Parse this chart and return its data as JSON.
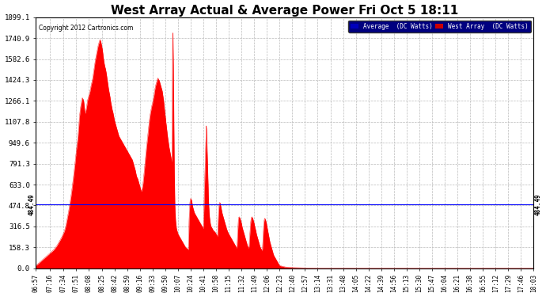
{
  "title": "West Array Actual & Average Power Fri Oct 5 18:11",
  "copyright": "Copyright 2012 Cartronics.com",
  "legend_labels": [
    "Average  (DC Watts)",
    "West Array  (DC Watts)"
  ],
  "legend_colors": [
    "#0000bb",
    "#cc0000"
  ],
  "avg_line_value": 484.49,
  "avg_label": "484.49",
  "ylim": [
    0,
    1899.1
  ],
  "yticks": [
    0.0,
    158.3,
    316.5,
    474.8,
    633.0,
    791.3,
    949.6,
    1107.8,
    1266.1,
    1424.3,
    1582.6,
    1740.9,
    1899.1
  ],
  "ytick_labels": [
    "0.0",
    "158.3",
    "316.5",
    "474.8",
    "633.0",
    "791.3",
    "949.6",
    "1107.8",
    "1266.1",
    "1424.3",
    "1582.6",
    "1740.9",
    "1899.1"
  ],
  "fill_color": "#ff0000",
  "avg_line_color": "#0000ff",
  "bg_color": "#ffffff",
  "grid_color": "#aaaaaa",
  "title_fontsize": 11,
  "xtick_labels": [
    "06:57",
    "07:16",
    "07:34",
    "07:51",
    "08:08",
    "08:25",
    "08:42",
    "08:59",
    "09:16",
    "09:33",
    "09:50",
    "10:07",
    "10:24",
    "10:41",
    "10:58",
    "11:15",
    "11:32",
    "11:49",
    "12:06",
    "12:23",
    "12:40",
    "12:57",
    "13:14",
    "13:31",
    "13:48",
    "14:05",
    "14:22",
    "14:39",
    "14:56",
    "15:13",
    "15:30",
    "15:47",
    "16:04",
    "16:21",
    "16:38",
    "16:55",
    "17:12",
    "17:29",
    "17:46",
    "18:03"
  ],
  "ctrl_points": [
    [
      417,
      20
    ],
    [
      419,
      30
    ],
    [
      421,
      40
    ],
    [
      423,
      50
    ],
    [
      425,
      60
    ],
    [
      427,
      70
    ],
    [
      429,
      80
    ],
    [
      431,
      90
    ],
    [
      433,
      100
    ],
    [
      435,
      110
    ],
    [
      437,
      120
    ],
    [
      439,
      130
    ],
    [
      441,
      140
    ],
    [
      443,
      155
    ],
    [
      445,
      170
    ],
    [
      447,
      190
    ],
    [
      449,
      210
    ],
    [
      451,
      230
    ],
    [
      453,
      255
    ],
    [
      455,
      280
    ],
    [
      457,
      320
    ],
    [
      459,
      380
    ],
    [
      461,
      440
    ],
    [
      463,
      510
    ],
    [
      465,
      590
    ],
    [
      467,
      680
    ],
    [
      469,
      780
    ],
    [
      471,
      890
    ],
    [
      473,
      980
    ],
    [
      474,
      1050
    ],
    [
      475,
      1130
    ],
    [
      476,
      1190
    ],
    [
      477,
      1230
    ],
    [
      478,
      1260
    ],
    [
      479,
      1290
    ],
    [
      480,
      1280
    ],
    [
      481,
      1260
    ],
    [
      482,
      1200
    ],
    [
      483,
      1170
    ],
    [
      484,
      1200
    ],
    [
      485,
      1230
    ],
    [
      486,
      1270
    ],
    [
      487,
      1290
    ],
    [
      488,
      1310
    ],
    [
      489,
      1330
    ],
    [
      490,
      1360
    ],
    [
      491,
      1390
    ],
    [
      492,
      1410
    ],
    [
      493,
      1440
    ],
    [
      494,
      1480
    ],
    [
      495,
      1520
    ],
    [
      496,
      1560
    ],
    [
      497,
      1590
    ],
    [
      498,
      1620
    ],
    [
      499,
      1650
    ],
    [
      500,
      1680
    ],
    [
      501,
      1700
    ],
    [
      502,
      1720
    ],
    [
      503,
      1730
    ],
    [
      504,
      1710
    ],
    [
      505,
      1680
    ],
    [
      506,
      1650
    ],
    [
      507,
      1600
    ],
    [
      508,
      1560
    ],
    [
      509,
      1530
    ],
    [
      510,
      1510
    ],
    [
      511,
      1480
    ],
    [
      512,
      1440
    ],
    [
      513,
      1400
    ],
    [
      514,
      1360
    ],
    [
      515,
      1330
    ],
    [
      516,
      1300
    ],
    [
      517,
      1260
    ],
    [
      518,
      1230
    ],
    [
      519,
      1200
    ],
    [
      520,
      1180
    ],
    [
      521,
      1150
    ],
    [
      522,
      1120
    ],
    [
      523,
      1100
    ],
    [
      524,
      1080
    ],
    [
      525,
      1060
    ],
    [
      526,
      1040
    ],
    [
      527,
      1020
    ],
    [
      528,
      1000
    ],
    [
      529,
      990
    ],
    [
      530,
      980
    ],
    [
      531,
      970
    ],
    [
      532,
      960
    ],
    [
      533,
      950
    ],
    [
      534,
      940
    ],
    [
      535,
      930
    ],
    [
      536,
      920
    ],
    [
      537,
      910
    ],
    [
      538,
      900
    ],
    [
      539,
      890
    ],
    [
      540,
      880
    ],
    [
      541,
      870
    ],
    [
      542,
      860
    ],
    [
      543,
      850
    ],
    [
      544,
      840
    ],
    [
      545,
      830
    ],
    [
      546,
      820
    ],
    [
      547,
      800
    ],
    [
      548,
      780
    ],
    [
      549,
      760
    ],
    [
      550,
      740
    ],
    [
      551,
      710
    ],
    [
      552,
      690
    ],
    [
      553,
      680
    ],
    [
      554,
      660
    ],
    [
      555,
      640
    ],
    [
      556,
      620
    ],
    [
      557,
      600
    ],
    [
      558,
      580
    ],
    [
      559,
      600
    ],
    [
      560,
      630
    ],
    [
      561,
      680
    ],
    [
      562,
      740
    ],
    [
      563,
      800
    ],
    [
      564,
      860
    ],
    [
      565,
      920
    ],
    [
      566,
      970
    ],
    [
      567,
      1020
    ],
    [
      568,
      1080
    ],
    [
      569,
      1130
    ],
    [
      570,
      1170
    ],
    [
      571,
      1200
    ],
    [
      572,
      1230
    ],
    [
      573,
      1250
    ],
    [
      574,
      1280
    ],
    [
      575,
      1310
    ],
    [
      576,
      1350
    ],
    [
      577,
      1380
    ],
    [
      578,
      1400
    ],
    [
      579,
      1420
    ],
    [
      580,
      1440
    ],
    [
      581,
      1430
    ],
    [
      582,
      1420
    ],
    [
      583,
      1400
    ],
    [
      584,
      1380
    ],
    [
      585,
      1360
    ],
    [
      586,
      1340
    ],
    [
      587,
      1300
    ],
    [
      588,
      1260
    ],
    [
      589,
      1200
    ],
    [
      590,
      1150
    ],
    [
      591,
      1100
    ],
    [
      592,
      1050
    ],
    [
      593,
      1000
    ],
    [
      594,
      960
    ],
    [
      595,
      920
    ],
    [
      596,
      890
    ],
    [
      597,
      860
    ],
    [
      598,
      830
    ],
    [
      599,
      800
    ],
    [
      600,
      1870
    ],
    [
      601,
      1500
    ],
    [
      602,
      800
    ],
    [
      603,
      450
    ],
    [
      604,
      350
    ],
    [
      605,
      300
    ],
    [
      606,
      280
    ],
    [
      607,
      260
    ],
    [
      608,
      250
    ],
    [
      609,
      240
    ],
    [
      610,
      230
    ],
    [
      611,
      220
    ],
    [
      612,
      210
    ],
    [
      613,
      200
    ],
    [
      614,
      190
    ],
    [
      615,
      180
    ],
    [
      616,
      170
    ],
    [
      617,
      160
    ],
    [
      618,
      155
    ],
    [
      619,
      150
    ],
    [
      620,
      145
    ],
    [
      621,
      140
    ],
    [
      622,
      390
    ],
    [
      623,
      500
    ],
    [
      624,
      530
    ],
    [
      625,
      520
    ],
    [
      626,
      490
    ],
    [
      627,
      460
    ],
    [
      628,
      440
    ],
    [
      629,
      420
    ],
    [
      630,
      410
    ],
    [
      631,
      400
    ],
    [
      632,
      390
    ],
    [
      633,
      380
    ],
    [
      634,
      370
    ],
    [
      635,
      360
    ],
    [
      636,
      350
    ],
    [
      637,
      340
    ],
    [
      638,
      330
    ],
    [
      639,
      320
    ],
    [
      640,
      310
    ],
    [
      641,
      300
    ],
    [
      642,
      500
    ],
    [
      643,
      700
    ],
    [
      644,
      900
    ],
    [
      645,
      1100
    ],
    [
      646,
      900
    ],
    [
      647,
      700
    ],
    [
      648,
      500
    ],
    [
      649,
      400
    ],
    [
      650,
      350
    ],
    [
      651,
      320
    ],
    [
      652,
      310
    ],
    [
      653,
      300
    ],
    [
      654,
      290
    ],
    [
      655,
      280
    ],
    [
      656,
      280
    ],
    [
      657,
      270
    ],
    [
      658,
      260
    ],
    [
      659,
      250
    ],
    [
      660,
      240
    ],
    [
      661,
      380
    ],
    [
      662,
      480
    ],
    [
      663,
      500
    ],
    [
      664,
      480
    ],
    [
      665,
      450
    ],
    [
      666,
      420
    ],
    [
      667,
      400
    ],
    [
      668,
      380
    ],
    [
      669,
      360
    ],
    [
      670,
      340
    ],
    [
      671,
      320
    ],
    [
      672,
      300
    ],
    [
      673,
      285
    ],
    [
      674,
      270
    ],
    [
      675,
      260
    ],
    [
      676,
      250
    ],
    [
      677,
      240
    ],
    [
      678,
      230
    ],
    [
      679,
      220
    ],
    [
      680,
      210
    ],
    [
      681,
      200
    ],
    [
      682,
      190
    ],
    [
      683,
      180
    ],
    [
      684,
      170
    ],
    [
      685,
      160
    ],
    [
      686,
      150
    ],
    [
      687,
      280
    ],
    [
      688,
      380
    ],
    [
      689,
      390
    ],
    [
      690,
      380
    ],
    [
      691,
      360
    ],
    [
      692,
      340
    ],
    [
      693,
      310
    ],
    [
      694,
      290
    ],
    [
      695,
      270
    ],
    [
      696,
      250
    ],
    [
      697,
      230
    ],
    [
      698,
      210
    ],
    [
      699,
      190
    ],
    [
      700,
      170
    ],
    [
      701,
      160
    ],
    [
      702,
      150
    ],
    [
      703,
      240
    ],
    [
      704,
      330
    ],
    [
      705,
      380
    ],
    [
      706,
      390
    ],
    [
      707,
      380
    ],
    [
      708,
      360
    ],
    [
      709,
      340
    ],
    [
      710,
      310
    ],
    [
      711,
      290
    ],
    [
      712,
      260
    ],
    [
      713,
      240
    ],
    [
      714,
      220
    ],
    [
      715,
      200
    ],
    [
      716,
      180
    ],
    [
      717,
      160
    ],
    [
      718,
      150
    ],
    [
      719,
      140
    ],
    [
      720,
      130
    ],
    [
      721,
      250
    ],
    [
      722,
      350
    ],
    [
      723,
      380
    ],
    [
      724,
      370
    ],
    [
      725,
      350
    ],
    [
      726,
      320
    ],
    [
      727,
      290
    ],
    [
      728,
      260
    ],
    [
      729,
      230
    ],
    [
      730,
      200
    ],
    [
      731,
      180
    ],
    [
      732,
      160
    ],
    [
      733,
      140
    ],
    [
      734,
      120
    ],
    [
      735,
      100
    ],
    [
      736,
      90
    ],
    [
      737,
      80
    ],
    [
      738,
      70
    ],
    [
      739,
      60
    ],
    [
      740,
      50
    ],
    [
      741,
      40
    ],
    [
      742,
      30
    ],
    [
      743,
      20
    ],
    [
      750,
      10
    ],
    [
      760,
      5
    ],
    [
      780,
      2
    ],
    [
      800,
      1
    ],
    [
      900,
      0
    ],
    [
      1083,
      0
    ]
  ]
}
